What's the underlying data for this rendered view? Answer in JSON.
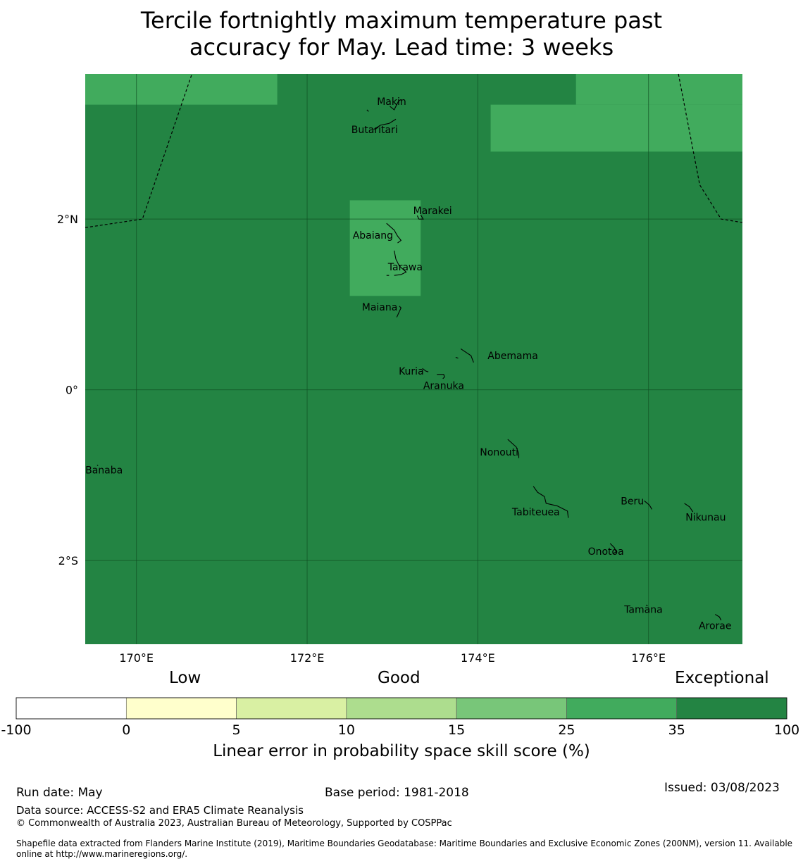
{
  "title": {
    "line1": "Tercile fortnightly maximum temperature past",
    "line2": "accuracy for May. Lead time: 3 weeks"
  },
  "map": {
    "background_color": "#238443",
    "lon_range": [
      169.4,
      177.1
    ],
    "lat_range": [
      -2.98,
      3.7
    ],
    "longitude_ticks": [
      {
        "value": 170,
        "label": "170°E"
      },
      {
        "value": 172,
        "label": "172°E"
      },
      {
        "value": 174,
        "label": "174°E"
      },
      {
        "value": 176,
        "label": "176°E"
      }
    ],
    "latitude_ticks": [
      {
        "value": 2,
        "label": "2°N"
      },
      {
        "value": 0,
        "label": "0°"
      },
      {
        "value": -2,
        "label": "2°S"
      }
    ],
    "skill_cells": [
      {
        "lon": [
          169.4,
          171.65
        ],
        "lat": [
          3.34,
          3.7
        ],
        "color": "#41ab5d",
        "category": "25-35"
      },
      {
        "lon": [
          175.15,
          177.1
        ],
        "lat": [
          3.34,
          3.7
        ],
        "color": "#41ab5d",
        "category": "25-35"
      },
      {
        "lon": [
          174.15,
          177.1
        ],
        "lat": [
          2.79,
          3.34
        ],
        "color": "#41ab5d",
        "category": "25-35"
      },
      {
        "lon": [
          172.5,
          173.33
        ],
        "lat": [
          1.1,
          2.22
        ],
        "color": "#41ab5d",
        "category": "25-35"
      }
    ],
    "eez_boundaries": [
      [
        [
          169.4,
          1.9
        ],
        [
          170.07,
          2.0
        ],
        [
          170.65,
          3.7
        ]
      ],
      [
        [
          176.35,
          3.7
        ],
        [
          176.6,
          2.4
        ],
        [
          176.85,
          2.0
        ],
        [
          177.1,
          1.96
        ]
      ]
    ],
    "islands": [
      {
        "name": "Makin",
        "lon": 172.99,
        "lat": 3.38
      },
      {
        "name": "Butaritari",
        "lon": 172.79,
        "lat": 3.05
      },
      {
        "name": "Marakei",
        "lon": 173.47,
        "lat": 2.1
      },
      {
        "name": "Abaiang",
        "lon": 172.77,
        "lat": 1.81
      },
      {
        "name": "Tarawa",
        "lon": 173.15,
        "lat": 1.44
      },
      {
        "name": "Maiana",
        "lon": 172.85,
        "lat": 0.97
      },
      {
        "name": "Abemama",
        "lon": 174.41,
        "lat": 0.4
      },
      {
        "name": "Kuria",
        "lon": 173.22,
        "lat": 0.22
      },
      {
        "name": "Aranuka",
        "lon": 173.6,
        "lat": 0.05
      },
      {
        "name": "Nonouti",
        "lon": 174.25,
        "lat": -0.73
      },
      {
        "name": "Banaba",
        "lon": 169.62,
        "lat": -0.94
      },
      {
        "name": "Beru",
        "lon": 175.81,
        "lat": -1.3
      },
      {
        "name": "Tabiteuea",
        "lon": 174.68,
        "lat": -1.43
      },
      {
        "name": "Nikunau",
        "lon": 176.67,
        "lat": -1.49
      },
      {
        "name": "Onotoa",
        "lon": 175.5,
        "lat": -1.89
      },
      {
        "name": "Tamana",
        "lon": 175.94,
        "lat": -2.57
      },
      {
        "name": "Arorae",
        "lon": 176.78,
        "lat": -2.76
      }
    ],
    "island_outlines": [
      [
        [
          172.97,
          3.32
        ],
        [
          173.02,
          3.28
        ],
        [
          173.07,
          3.38
        ],
        [
          173.1,
          3.4
        ]
      ],
      [
        [
          172.78,
          3.05
        ],
        [
          172.86,
          3.1
        ],
        [
          172.96,
          3.12
        ],
        [
          173.04,
          3.17
        ]
      ],
      [
        [
          172.7,
          3.28
        ],
        [
          172.72,
          3.26
        ]
      ],
      [
        [
          173.29,
          2.04
        ],
        [
          173.31,
          2.0
        ],
        [
          173.36,
          2.0
        ],
        [
          173.33,
          2.05
        ]
      ],
      [
        [
          172.93,
          1.95
        ],
        [
          173.02,
          1.87
        ],
        [
          173.06,
          1.8
        ],
        [
          173.1,
          1.75
        ],
        [
          173.06,
          1.72
        ]
      ],
      [
        [
          173.02,
          1.63
        ],
        [
          173.04,
          1.53
        ],
        [
          173.08,
          1.45
        ],
        [
          173.16,
          1.38
        ],
        [
          173.1,
          1.35
        ],
        [
          173.02,
          1.34
        ]
      ],
      [
        [
          172.93,
          1.34
        ],
        [
          172.96,
          1.34
        ]
      ],
      [
        [
          173.08,
          0.98
        ],
        [
          173.1,
          0.96
        ],
        [
          173.05,
          0.85
        ]
      ],
      [
        [
          173.8,
          0.48
        ],
        [
          173.86,
          0.44
        ],
        [
          173.92,
          0.4
        ],
        [
          173.95,
          0.32
        ]
      ],
      [
        [
          173.74,
          0.38
        ],
        [
          173.77,
          0.37
        ]
      ],
      [
        [
          173.35,
          0.25
        ],
        [
          173.39,
          0.22
        ],
        [
          173.42,
          0.21
        ]
      ],
      [
        [
          173.52,
          0.18
        ],
        [
          173.6,
          0.18
        ],
        [
          173.61,
          0.15
        ],
        [
          173.59,
          0.13
        ]
      ],
      [
        [
          174.35,
          -0.58
        ],
        [
          174.45,
          -0.67
        ],
        [
          174.48,
          -0.75
        ],
        [
          174.48,
          -0.8
        ]
      ],
      [
        [
          169.54,
          -0.88
        ],
        [
          169.55,
          -0.89
        ]
      ],
      [
        [
          174.65,
          -1.13
        ],
        [
          174.7,
          -1.2
        ],
        [
          174.78,
          -1.25
        ],
        [
          174.8,
          -1.33
        ],
        [
          174.93,
          -1.36
        ],
        [
          175.05,
          -1.42
        ],
        [
          175.06,
          -1.5
        ]
      ],
      [
        [
          175.95,
          -1.3
        ],
        [
          176.01,
          -1.35
        ],
        [
          176.04,
          -1.4
        ]
      ],
      [
        [
          176.42,
          -1.33
        ],
        [
          176.48,
          -1.37
        ],
        [
          176.52,
          -1.43
        ]
      ],
      [
        [
          175.55,
          -1.8
        ],
        [
          175.6,
          -1.85
        ],
        [
          175.62,
          -1.9
        ],
        [
          175.58,
          -1.92
        ]
      ],
      [
        [
          175.97,
          -2.52
        ],
        [
          175.99,
          -2.53
        ]
      ],
      [
        [
          176.78,
          -2.63
        ],
        [
          176.83,
          -2.66
        ],
        [
          176.85,
          -2.7
        ]
      ]
    ]
  },
  "colorbar": {
    "category_words": {
      "low": "Low",
      "good": "Good",
      "exceptional": "Exceptional"
    },
    "segments": [
      {
        "from": "-100",
        "to": "0",
        "color": "#ffffff"
      },
      {
        "from": "0",
        "to": "5",
        "color": "#ffffcc"
      },
      {
        "from": "5",
        "to": "10",
        "color": "#d9f0a3"
      },
      {
        "from": "10",
        "to": "15",
        "color": "#addd8e"
      },
      {
        "from": "15",
        "to": "25",
        "color": "#78c679"
      },
      {
        "from": "25",
        "to": "35",
        "color": "#41ab5d"
      },
      {
        "from": "35",
        "to": "100",
        "color": "#238443"
      }
    ],
    "tick_labels": [
      "-100",
      "0",
      "5",
      "10",
      "15",
      "25",
      "35",
      "100"
    ],
    "title": "Linear error in probability space skill score (%)"
  },
  "footer": {
    "run_date": "Run date: May",
    "base_period": "Base period: 1981-2018",
    "issued": "Issued: 03/08/2023",
    "data_source": "Data source: ACCESS-S2 and ERA5 Climate Reanalysis",
    "copyright": "© Commonwealth of Australia 2023, Australian Bureau of Meteorology, Supported by COSPPac",
    "shapefile_line1": "Shapefile data extracted from Flanders Marine Institute (2019), Maritime Boundaries Geodatabase: Maritime Boundaries and Exclusive Economic Zones (200NM), version 11. Available",
    "shapefile_line2": "online at http://www.marineregions.org/."
  }
}
